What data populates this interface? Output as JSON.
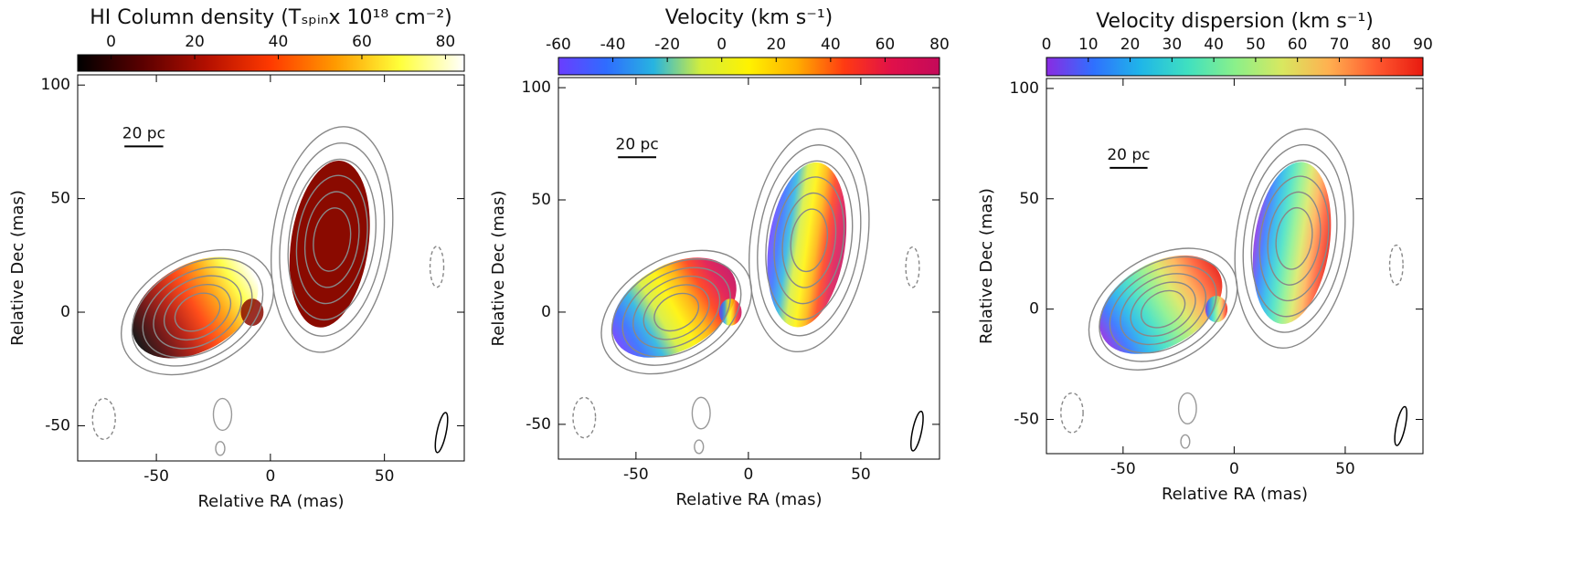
{
  "chart_data": [
    {
      "type": "map",
      "title": "HI Column density (Tₛₚᵢₙx 10¹⁸ cm⁻²)",
      "xlabel": "Relative RA (mas)",
      "ylabel": "Relative Dec (mas)",
      "xlim": [
        -84.5,
        85
      ],
      "ylim": [
        -65.5,
        104.5
      ],
      "xticks": [
        -50,
        0,
        50
      ],
      "yticks": [
        -50,
        0,
        50,
        100
      ],
      "colorbar_lim": [
        -8,
        84.5
      ],
      "colorbar_ticks": [
        0,
        20,
        40,
        60,
        80
      ],
      "colormap": [
        "#000000",
        "#5a0000",
        "#b30f00",
        "#ff3a00",
        "#ff9a00",
        "#ffff3a",
        "#ffffff"
      ],
      "scale_bar": "20 pc"
    },
    {
      "type": "map",
      "title": "Velocity (km s⁻¹)",
      "xlabel": "Relative RA (mas)",
      "ylabel": "Relative Dec (mas)",
      "xlim": [
        -84.5,
        85
      ],
      "ylim": [
        -65.5,
        104.5
      ],
      "xticks": [
        -50,
        0,
        50
      ],
      "yticks": [
        -50,
        0,
        50,
        100
      ],
      "colorbar_lim": [
        -60,
        80
      ],
      "colorbar_ticks": [
        -60,
        -40,
        -20,
        0,
        20,
        40,
        60,
        80
      ],
      "colormap": [
        "#6a3dff",
        "#2f6cff",
        "#27b4e0",
        "#d5ee3a",
        "#fff200",
        "#ffae00",
        "#ff3a12",
        "#e0104a",
        "#c40a5a"
      ],
      "scale_bar": "20 pc"
    },
    {
      "type": "map",
      "title": "Velocity dispersion (km s⁻¹)",
      "xlabel": "Relative RA (mas)",
      "ylabel": "Relative Dec (mas)",
      "xlim": [
        -84.5,
        85
      ],
      "ylim": [
        -65.5,
        104.5
      ],
      "xticks": [
        -50,
        0,
        50
      ],
      "yticks": [
        -50,
        0,
        50,
        100
      ],
      "colorbar_lim": [
        0,
        90
      ],
      "colorbar_ticks": [
        0,
        10,
        20,
        30,
        40,
        50,
        60,
        70,
        80,
        90
      ],
      "colormap": [
        "#8a2be2",
        "#2f70ff",
        "#1fb6e8",
        "#3fe0c0",
        "#8af08a",
        "#d8e860",
        "#ffb050",
        "#ff5a30",
        "#e81a10"
      ],
      "scale_bar": "20 pc"
    }
  ]
}
